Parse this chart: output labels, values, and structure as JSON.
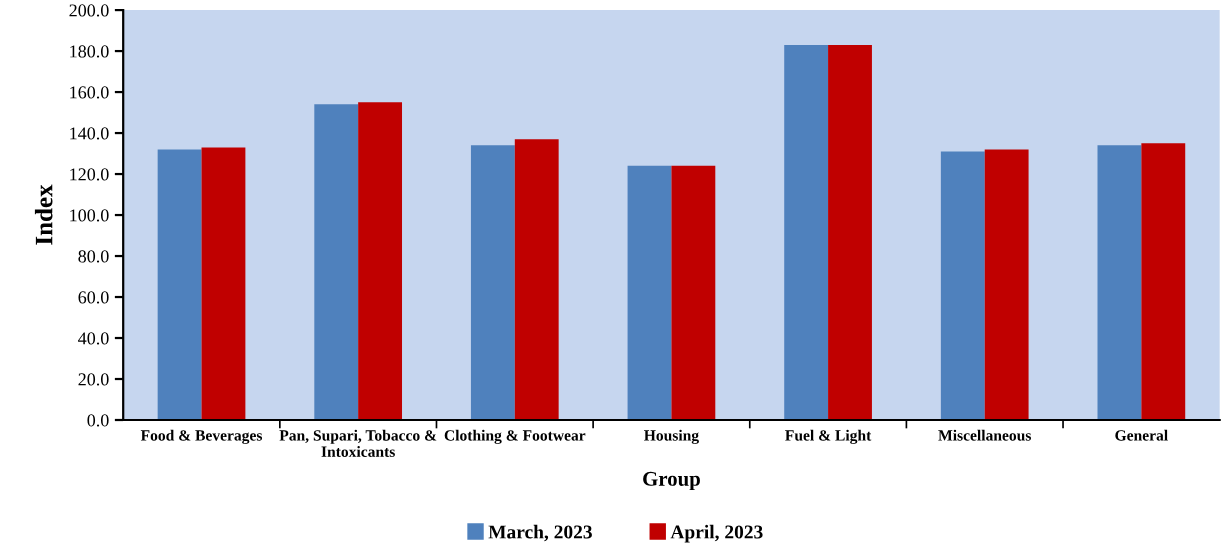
{
  "chart_data": {
    "type": "bar",
    "xlabel": "Group",
    "ylabel": "Index",
    "categories": [
      "Food & Beverages",
      "Pan, Supari, Tobacco &\nIntoxicants",
      "Clothing & Footwear",
      "Housing",
      "Fuel & Light",
      "Miscellaneous",
      "General"
    ],
    "series": [
      {
        "name": "March, 2023",
        "color": "#4f81bd",
        "values": [
          132,
          154,
          134,
          124,
          183,
          131,
          134
        ]
      },
      {
        "name": "April, 2023",
        "color": "#c00000",
        "values": [
          133,
          155,
          137,
          124,
          183,
          132,
          135
        ]
      }
    ],
    "ylim": [
      0,
      200
    ],
    "yticks": [
      {
        "value": 0,
        "label": "0.0"
      },
      {
        "value": 20,
        "label": "20.0"
      },
      {
        "value": 40,
        "label": "40.0"
      },
      {
        "value": 60,
        "label": "60.0"
      },
      {
        "value": 80,
        "label": "80.0"
      },
      {
        "value": 100,
        "label": "100.0"
      },
      {
        "value": 120,
        "label": "120.0"
      },
      {
        "value": 140,
        "label": "140.0"
      },
      {
        "value": 160,
        "label": "160.0"
      },
      {
        "value": 180,
        "label": "180.0"
      },
      {
        "value": 200,
        "label": "200.0"
      }
    ],
    "grid": false,
    "legend": "bottom"
  }
}
